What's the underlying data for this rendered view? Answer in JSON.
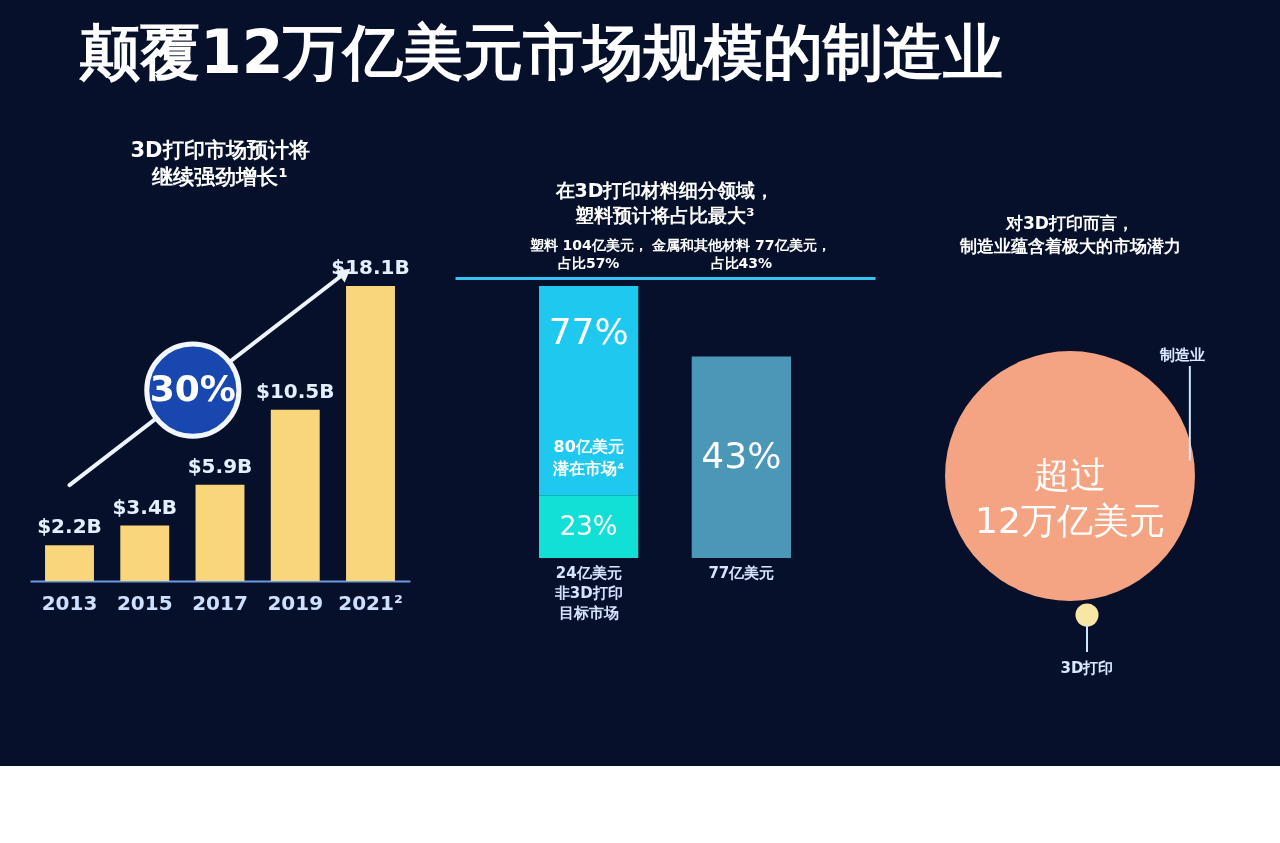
{
  "chart_data": [
    {
      "type": "other",
      "title": "颠覆12万亿美元市场规模的制造业"
    },
    {
      "type": "bar",
      "title": "3D打印市场预计将继续强劲增长¹",
      "categories": [
        "2013",
        "2015",
        "2017",
        "2019",
        "2021²"
      ],
      "values": [
        2.2,
        3.4,
        5.9,
        10.5,
        18.1
      ],
      "value_labels": [
        "$2.2B",
        "$3.4B",
        "$5.9B",
        "$10.5B",
        "$18.1B"
      ],
      "color": "#f9d67b",
      "annotations": [
        "30%"
      ]
    },
    {
      "type": "bar",
      "stacked": true,
      "title": "在3D打印材料细分领域，塑料预计将占比最大³",
      "categories": [
        "塑料 104亿美元，占比57%",
        "金属和其他材料 77亿美元，占比43%"
      ],
      "series": [
        {
          "color": "#12e0d6",
          "values": [
            24,
            null
          ],
          "value_labels": [
            "24亿美元非3D打印目标市场",
            null
          ]
        },
        {
          "colors": [
            "#1fc8ee",
            "#4a97b8"
          ],
          "values": [
            80,
            77
          ],
          "value_labels": [
            "80亿美元潜在市场⁴",
            "77亿美元"
          ]
        }
      ],
      "annotations": [
        "23%",
        "77%",
        "43%"
      ]
    },
    {
      "type": "other",
      "title": "对3D打印而言，制造业蕴含着极大的市场潜力",
      "categories": [
        "制造业",
        "3D打印"
      ],
      "colors": [
        "#f4a383",
        "#f7e7a3"
      ],
      "annotations": [
        "超过12万亿美元"
      ]
    }
  ]
}
